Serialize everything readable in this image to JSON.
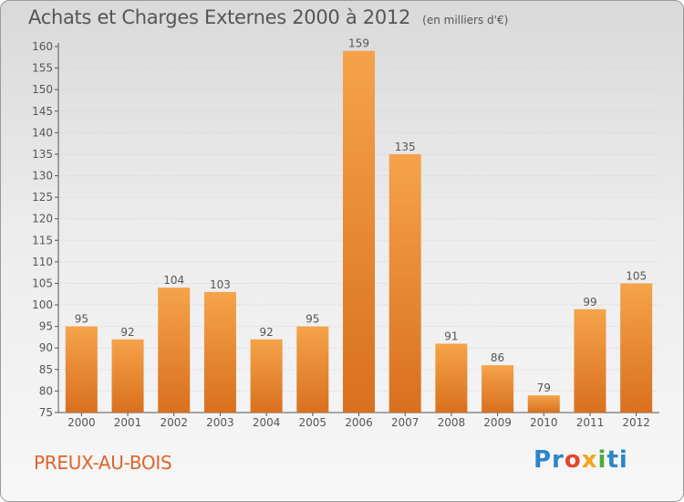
{
  "title": {
    "main": "Achats et Charges Externes 2000 à 2012",
    "unit": "(en milliers d'€)"
  },
  "commune": "PREUX-AU-BOIS",
  "logo": {
    "text": "Proxiti",
    "colors": [
      "#2a86c9",
      "#e3462e",
      "#f2a51c",
      "#4caa3a",
      "#2a86c9"
    ]
  },
  "colors": {
    "bar_light": "#f5a34a",
    "bar_dark": "#d9701e",
    "axis": "#555555",
    "grid": "#cfcfcf",
    "text": "#555555",
    "commune": "#e0632a"
  },
  "chart_data": {
    "type": "bar",
    "title": "Achats et Charges Externes 2000 à 2012",
    "subtitle": "(en milliers d'€)",
    "categories": [
      "2000",
      "2001",
      "2002",
      "2003",
      "2004",
      "2005",
      "2006",
      "2007",
      "2008",
      "2009",
      "2010",
      "2011",
      "2012"
    ],
    "values": [
      95,
      92,
      104,
      103,
      92,
      95,
      159,
      135,
      91,
      86,
      79,
      99,
      105
    ],
    "ylim": [
      75,
      160
    ],
    "yticks": [
      75,
      80,
      85,
      90,
      95,
      100,
      105,
      110,
      115,
      120,
      125,
      130,
      135,
      140,
      145,
      150,
      155,
      160
    ],
    "grid": true,
    "xlabel": "",
    "ylabel": ""
  }
}
